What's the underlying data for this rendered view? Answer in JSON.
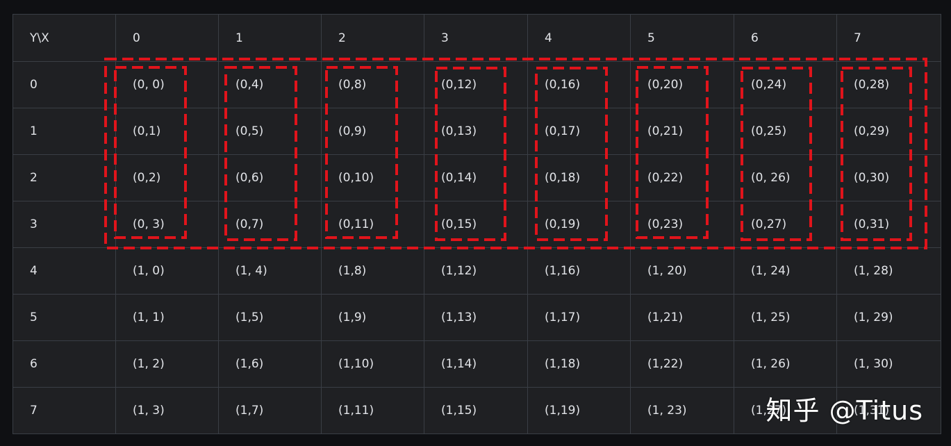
{
  "table": {
    "corner": "Y\\X",
    "col_headers": [
      "0",
      "1",
      "2",
      "3",
      "4",
      "5",
      "6",
      "7"
    ],
    "rows": [
      {
        "label": "0",
        "cells": [
          "(0, 0)",
          "(0,4)",
          "(0,8)",
          "(0,12)",
          "(0,16)",
          "(0,20)",
          "(0,24)",
          "(0,28)"
        ]
      },
      {
        "label": "1",
        "cells": [
          "(0,1)",
          "(0,5)",
          "(0,9)",
          "(0,13)",
          "(0,17)",
          "(0,21)",
          "(0,25)",
          "(0,29)"
        ]
      },
      {
        "label": "2",
        "cells": [
          "(0,2)",
          "(0,6)",
          "(0,10)",
          "(0,14)",
          "(0,18)",
          "(0,22)",
          "(0, 26)",
          "(0,30)"
        ]
      },
      {
        "label": "3",
        "cells": [
          "(0, 3)",
          "(0,7)",
          "(0,11)",
          "(0,15)",
          "(0,19)",
          "(0,23)",
          "(0,27)",
          "(0,31)"
        ]
      },
      {
        "label": "4",
        "cells": [
          "(1, 0)",
          "(1, 4)",
          "(1,8)",
          "(1,12)",
          "(1,16)",
          "(1, 20)",
          "(1, 24)",
          "(1, 28)"
        ]
      },
      {
        "label": "5",
        "cells": [
          "(1, 1)",
          "(1,5)",
          "(1,9)",
          "(1,13)",
          "(1,17)",
          "(1,21)",
          "(1, 25)",
          "(1, 29)"
        ]
      },
      {
        "label": "6",
        "cells": [
          "(1, 2)",
          "(1,6)",
          "(1,10)",
          "(1,14)",
          "(1,18)",
          "(1,22)",
          "(1, 26)",
          "(1, 30)"
        ]
      },
      {
        "label": "7",
        "cells": [
          "(1, 3)",
          "(1,7)",
          "(1,11)",
          "(1,15)",
          "(1,19)",
          "(1, 23)",
          "(1,27)",
          "(1,31)"
        ]
      }
    ]
  },
  "highlight_color": "#e0141b",
  "watermark": "知乎 @Titus"
}
